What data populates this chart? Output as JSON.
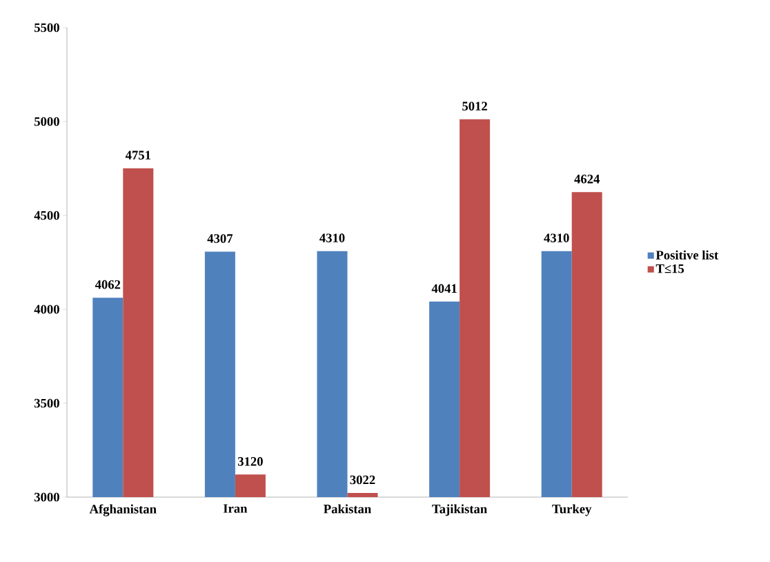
{
  "chart_data": {
    "type": "bar",
    "categories": [
      "Afghanistan",
      "Iran",
      "Pakistan",
      "Tajikistan",
      "Turkey"
    ],
    "series": [
      {
        "name": "Positive list",
        "color": "#4f81bd",
        "values": [
          4062,
          4307,
          4310,
          4041,
          4310
        ]
      },
      {
        "name": "T≤15",
        "color": "#c0504d",
        "values": [
          4751,
          3120,
          3022,
          5012,
          4624
        ]
      }
    ],
    "ylim": [
      3000,
      5500
    ],
    "yticks": [
      3000,
      3500,
      4000,
      4500,
      5000,
      5500
    ],
    "data_labels": true,
    "legend": "right",
    "grid": false
  }
}
